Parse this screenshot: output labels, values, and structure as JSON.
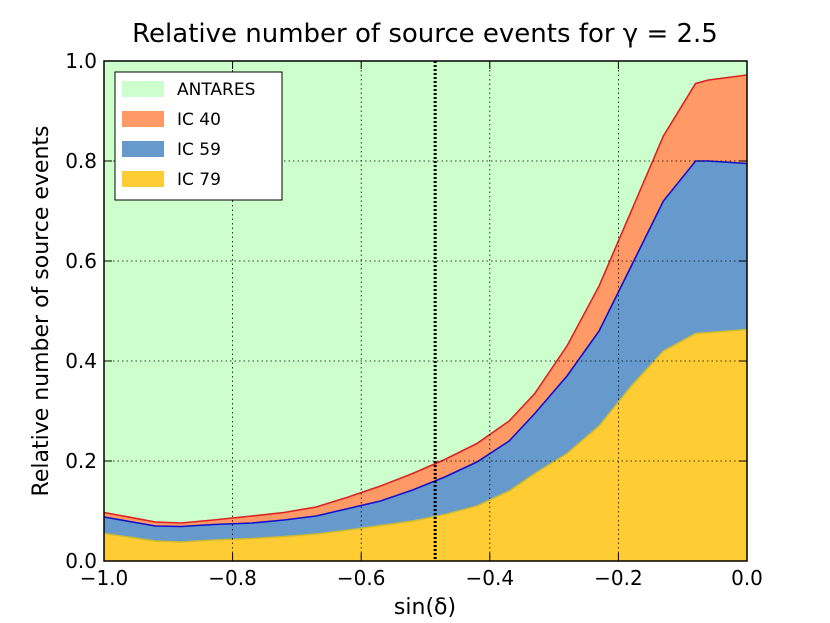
{
  "chart_data": {
    "type": "area",
    "title": "Relative number of source events for γ = 2.5",
    "xlabel": "sin(δ)",
    "ylabel": "Relative number of source events",
    "xlim": [
      -1.0,
      0.0
    ],
    "ylim": [
      0.0,
      1.0
    ],
    "grid": true,
    "legend_position": "top-left",
    "x_ticks": [
      -1.0,
      -0.8,
      -0.6,
      -0.4,
      -0.2,
      0.0
    ],
    "x_tick_labels": [
      "−1.0",
      "−0.8",
      "−0.6",
      "−0.4",
      "−0.2",
      "0.0"
    ],
    "y_ticks": [
      0.0,
      0.2,
      0.4,
      0.6,
      0.8,
      1.0
    ],
    "y_tick_labels": [
      "0.0",
      "0.2",
      "0.4",
      "0.6",
      "0.8",
      "1.0"
    ],
    "vertical_marker_x": -0.485,
    "x": [
      -1.0,
      -0.92,
      -0.88,
      -0.83,
      -0.77,
      -0.72,
      -0.67,
      -0.62,
      -0.57,
      -0.52,
      -0.47,
      -0.42,
      -0.37,
      -0.33,
      -0.28,
      -0.23,
      -0.18,
      -0.13,
      -0.08,
      -0.06,
      0.0
    ],
    "series": [
      {
        "name": "ANTARES",
        "color": "#ccffcc",
        "values": [
          1.0,
          1.0,
          1.0,
          1.0,
          1.0,
          1.0,
          1.0,
          1.0,
          1.0,
          1.0,
          1.0,
          1.0,
          1.0,
          1.0,
          1.0,
          1.0,
          1.0,
          1.0,
          1.0,
          1.0,
          1.0
        ]
      },
      {
        "name": "IC 40",
        "color": "#ff9966",
        "line_color": "#dd2222",
        "values": [
          0.097,
          0.078,
          0.076,
          0.082,
          0.09,
          0.097,
          0.108,
          0.128,
          0.15,
          0.175,
          0.203,
          0.235,
          0.28,
          0.335,
          0.43,
          0.55,
          0.7,
          0.85,
          0.955,
          0.962,
          0.972
        ]
      },
      {
        "name": "IC 59",
        "color": "#6699cc",
        "line_color": "#1111cc",
        "values": [
          0.088,
          0.07,
          0.069,
          0.073,
          0.076,
          0.082,
          0.09,
          0.105,
          0.12,
          0.142,
          0.168,
          0.198,
          0.24,
          0.295,
          0.37,
          0.46,
          0.59,
          0.72,
          0.8,
          0.8,
          0.795
        ]
      },
      {
        "name": "IC 79",
        "color": "#ffcc33",
        "line_color": "#ccbb33",
        "values": [
          0.055,
          0.04,
          0.038,
          0.042,
          0.045,
          0.049,
          0.054,
          0.062,
          0.071,
          0.08,
          0.093,
          0.11,
          0.14,
          0.175,
          0.215,
          0.27,
          0.35,
          0.42,
          0.455,
          0.457,
          0.463
        ]
      }
    ]
  }
}
